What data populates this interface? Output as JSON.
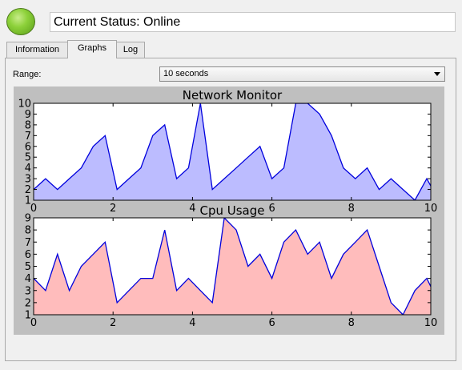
{
  "status": {
    "text": "Current Status: Online",
    "indicator_color": "#8dd13a"
  },
  "tabs": [
    {
      "label": "Information",
      "active": false
    },
    {
      "label": "Graphs",
      "active": true
    },
    {
      "label": "Log",
      "active": false
    }
  ],
  "range": {
    "label": "Range:",
    "selected": "10 seconds"
  },
  "chart_data": [
    {
      "type": "area",
      "title": "Network Monitor",
      "xlim": [
        0,
        10
      ],
      "ylim": [
        1,
        10
      ],
      "x_ticks": [
        "0",
        "2",
        "4",
        "6",
        "8",
        "10"
      ],
      "y_ticks": [
        "1",
        "2",
        "3",
        "4",
        "5",
        "6",
        "7",
        "8",
        "9",
        "10"
      ],
      "x": [
        0,
        0.3,
        0.6,
        0.9,
        1.2,
        1.5,
        1.8,
        2.1,
        2.4,
        2.7,
        3.0,
        3.3,
        3.6,
        3.9,
        4.2,
        4.5,
        4.8,
        5.1,
        5.4,
        5.7,
        6.0,
        6.3,
        6.6,
        6.9,
        7.2,
        7.5,
        7.8,
        8.1,
        8.4,
        8.7,
        9.0,
        9.3,
        9.6,
        9.9,
        10.2
      ],
      "y": [
        2,
        3,
        2,
        3,
        4,
        6,
        7,
        2,
        3,
        4,
        7,
        8,
        3,
        4,
        10,
        2,
        3,
        4,
        5,
        6,
        3,
        4,
        10,
        10,
        9,
        7,
        4,
        3,
        4,
        2,
        3,
        2,
        1,
        3,
        1
      ],
      "line_color": "#0000dd",
      "fill_color": "#bcbcff"
    },
    {
      "type": "area",
      "title": "Cpu Usage",
      "xlim": [
        0,
        10
      ],
      "ylim": [
        1,
        9
      ],
      "x_ticks": [
        "0",
        "2",
        "4",
        "6",
        "8",
        "10"
      ],
      "y_ticks": [
        "1",
        "2",
        "3",
        "4",
        "5",
        "6",
        "7",
        "8",
        "9"
      ],
      "x": [
        0,
        0.3,
        0.6,
        0.9,
        1.2,
        1.5,
        1.8,
        2.1,
        2.4,
        2.7,
        3.0,
        3.3,
        3.6,
        3.9,
        4.2,
        4.5,
        4.8,
        5.1,
        5.4,
        5.7,
        6.0,
        6.3,
        6.6,
        6.9,
        7.2,
        7.5,
        7.8,
        8.1,
        8.4,
        8.7,
        9.0,
        9.3,
        9.6,
        9.9,
        10.2
      ],
      "y": [
        4,
        3,
        6,
        3,
        5,
        6,
        7,
        2,
        3,
        4,
        4,
        8,
        3,
        4,
        3,
        2,
        9,
        8,
        5,
        6,
        4,
        7,
        8,
        6,
        7,
        4,
        6,
        7,
        8,
        5,
        2,
        1,
        3,
        4,
        2
      ],
      "line_color": "#0000dd",
      "fill_color": "#ffbcbc"
    }
  ]
}
